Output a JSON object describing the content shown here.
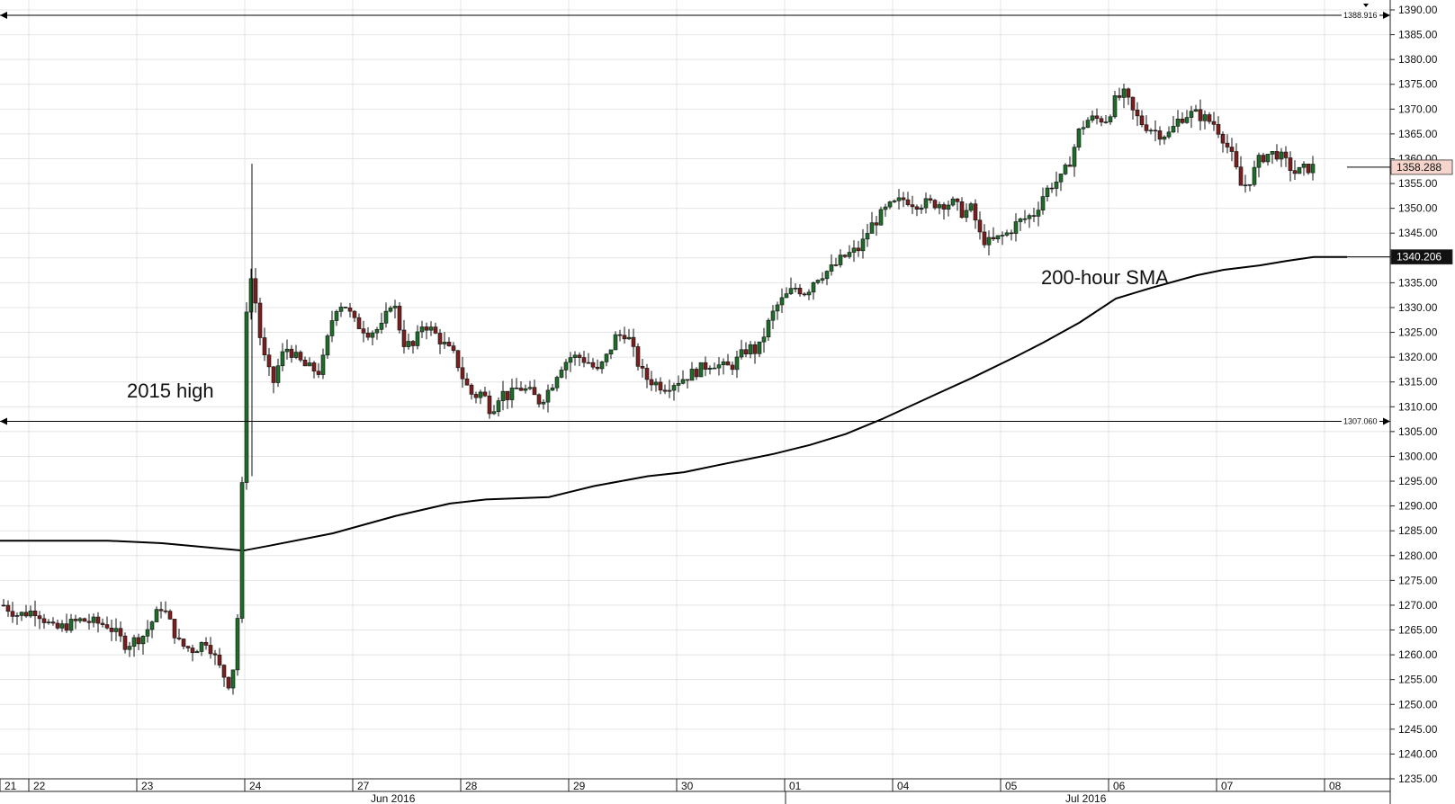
{
  "chart_data": {
    "type": "candlestick",
    "y_axis": {
      "ticks": [
        "1235.00",
        "1240.00",
        "1245.00",
        "1250.00",
        "1255.00",
        "1260.00",
        "1265.00",
        "1270.00",
        "1275.00",
        "1280.00",
        "1285.00",
        "1290.00",
        "1295.00",
        "1300.00",
        "1305.00",
        "1310.00",
        "1315.00",
        "1320.00",
        "1325.00",
        "1330.00",
        "1335.00",
        "1340.00",
        "1345.00",
        "1350.00",
        "1355.00",
        "1360.00",
        "1365.00",
        "1370.00",
        "1375.00",
        "1380.00",
        "1385.00",
        "1390.00"
      ],
      "range": [
        1232.5,
        1392
      ]
    },
    "x_axis": {
      "day_labels": [
        "21",
        "22",
        "23",
        "24",
        "27",
        "28",
        "29",
        "30",
        "01",
        "04",
        "05",
        "06",
        "07",
        "08"
      ],
      "month_labels": [
        "Jun 2016",
        "Jul 2016"
      ]
    },
    "horizontal_lines": [
      {
        "value": 1388.916,
        "label": "1388.916"
      },
      {
        "value": 1307.06,
        "label": "1307.060"
      }
    ],
    "price_tags": [
      {
        "value": 1358.288,
        "label": "1358.288",
        "bg": "#f6d6cc",
        "fg": "#111111"
      },
      {
        "value": 1340.206,
        "label": "1340.206",
        "bg": "#111111",
        "fg": "#ffffff"
      }
    ],
    "annotations": [
      {
        "text": "2015 high"
      },
      {
        "text": "200-hour SMA"
      }
    ],
    "sma_series": [
      [
        0,
        1283
      ],
      [
        120,
        1283
      ],
      [
        180,
        1282.5
      ],
      [
        240,
        1281.5
      ],
      [
        270,
        1281
      ],
      [
        300,
        1282
      ],
      [
        370,
        1284.5
      ],
      [
        440,
        1288
      ],
      [
        500,
        1290.5
      ],
      [
        540,
        1291.3
      ],
      [
        610,
        1291.8
      ],
      [
        660,
        1294
      ],
      [
        720,
        1296
      ],
      [
        760,
        1296.8
      ],
      [
        800,
        1298.3
      ],
      [
        860,
        1300.5
      ],
      [
        900,
        1302.3
      ],
      [
        940,
        1304.5
      ],
      [
        980,
        1307.5
      ],
      [
        1040,
        1312.5
      ],
      [
        1080,
        1315.8
      ],
      [
        1130,
        1320.2
      ],
      [
        1160,
        1323
      ],
      [
        1200,
        1327
      ],
      [
        1240,
        1331.8
      ],
      [
        1280,
        1334
      ],
      [
        1330,
        1336.5
      ],
      [
        1360,
        1337.6
      ],
      [
        1400,
        1338.5
      ],
      [
        1430,
        1339.4
      ],
      [
        1460,
        1340.2
      ],
      [
        1497,
        1340.206
      ]
    ],
    "candles_anchor": [
      [
        4,
        1270
      ],
      [
        20,
        1268
      ],
      [
        40,
        1269
      ],
      [
        60,
        1265
      ],
      [
        90,
        1267
      ],
      [
        120,
        1266
      ],
      [
        140,
        1262
      ],
      [
        160,
        1264
      ],
      [
        180,
        1270
      ],
      [
        200,
        1262
      ],
      [
        215,
        1261
      ],
      [
        230,
        1263
      ],
      [
        245,
        1257
      ],
      [
        255,
        1254
      ],
      [
        262,
        1260
      ],
      [
        266,
        1275
      ],
      [
        270,
        1300
      ],
      [
        274,
        1330
      ],
      [
        280,
        1337
      ],
      [
        288,
        1325
      ],
      [
        296,
        1318
      ],
      [
        304,
        1315
      ],
      [
        312,
        1320
      ],
      [
        320,
        1322
      ],
      [
        328,
        1320
      ],
      [
        340,
        1318
      ],
      [
        356,
        1317
      ],
      [
        372,
        1330
      ],
      [
        382,
        1331
      ],
      [
        394,
        1327
      ],
      [
        410,
        1325
      ],
      [
        425,
        1326
      ],
      [
        436,
        1332
      ],
      [
        448,
        1323
      ],
      [
        460,
        1322
      ],
      [
        470,
        1327
      ],
      [
        482,
        1325
      ],
      [
        496,
        1322
      ],
      [
        506,
        1320
      ],
      [
        516,
        1315
      ],
      [
        526,
        1312
      ],
      [
        536,
        1313
      ],
      [
        546,
        1309
      ],
      [
        556,
        1313
      ],
      [
        566,
        1312
      ],
      [
        576,
        1314
      ],
      [
        588,
        1313
      ],
      [
        600,
        1311
      ],
      [
        612,
        1314
      ],
      [
        622,
        1318
      ],
      [
        634,
        1320
      ],
      [
        644,
        1320
      ],
      [
        654,
        1319
      ],
      [
        664,
        1317
      ],
      [
        674,
        1320
      ],
      [
        684,
        1324
      ],
      [
        696,
        1325
      ],
      [
        706,
        1320
      ],
      [
        716,
        1316
      ],
      [
        726,
        1315
      ],
      [
        738,
        1314
      ],
      [
        750,
        1315
      ],
      [
        762,
        1316
      ],
      [
        772,
        1317
      ],
      [
        782,
        1318
      ],
      [
        792,
        1319
      ],
      [
        802,
        1318
      ],
      [
        812,
        1318
      ],
      [
        822,
        1320
      ],
      [
        832,
        1322
      ],
      [
        842,
        1321
      ],
      [
        852,
        1326
      ],
      [
        862,
        1330
      ],
      [
        872,
        1332
      ],
      [
        884,
        1334
      ],
      [
        896,
        1333
      ],
      [
        906,
        1336
      ],
      [
        916,
        1337
      ],
      [
        926,
        1338
      ],
      [
        936,
        1340
      ],
      [
        946,
        1341
      ],
      [
        956,
        1342
      ],
      [
        966,
        1346
      ],
      [
        976,
        1348
      ],
      [
        986,
        1350
      ],
      [
        996,
        1351
      ],
      [
        1006,
        1352
      ],
      [
        1016,
        1351
      ],
      [
        1026,
        1351
      ],
      [
        1040,
        1351
      ],
      [
        1060,
        1351
      ],
      [
        1070,
        1349
      ],
      [
        1080,
        1350
      ],
      [
        1090,
        1344
      ],
      [
        1100,
        1343
      ],
      [
        1110,
        1344
      ],
      [
        1120,
        1345
      ],
      [
        1130,
        1347
      ],
      [
        1140,
        1348
      ],
      [
        1150,
        1349
      ],
      [
        1160,
        1353
      ],
      [
        1170,
        1355
      ],
      [
        1180,
        1356
      ],
      [
        1190,
        1360
      ],
      [
        1200,
        1366
      ],
      [
        1210,
        1368
      ],
      [
        1220,
        1368
      ],
      [
        1230,
        1368
      ],
      [
        1240,
        1372
      ],
      [
        1250,
        1373
      ],
      [
        1260,
        1369
      ],
      [
        1270,
        1367
      ],
      [
        1280,
        1366
      ],
      [
        1290,
        1365
      ],
      [
        1300,
        1365
      ],
      [
        1310,
        1368
      ],
      [
        1320,
        1369
      ],
      [
        1330,
        1369
      ],
      [
        1340,
        1368
      ],
      [
        1350,
        1367
      ],
      [
        1360,
        1364
      ],
      [
        1370,
        1360
      ],
      [
        1380,
        1354
      ],
      [
        1390,
        1356
      ],
      [
        1400,
        1360
      ],
      [
        1410,
        1361
      ],
      [
        1420,
        1361
      ],
      [
        1430,
        1359
      ],
      [
        1440,
        1357
      ],
      [
        1450,
        1358
      ],
      [
        1460,
        1358.288
      ]
    ]
  }
}
